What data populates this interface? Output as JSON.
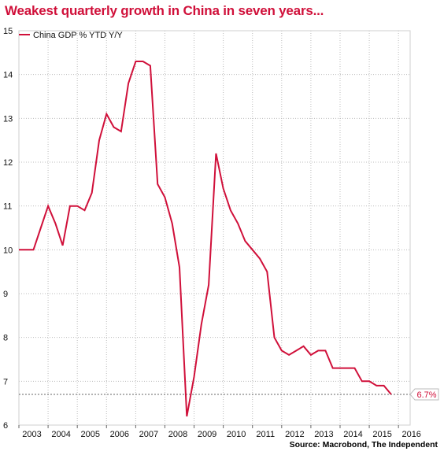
{
  "title": "Weakest quarterly growth in China in seven years...",
  "source": "Source: Macrobond, The Independent",
  "colors": {
    "series": "#d0103a",
    "title": "#d0103a",
    "grid": "#bbbbbb"
  },
  "chart_data": {
    "type": "line",
    "title": "Weakest quarterly growth in China in seven years...",
    "xlabel": "",
    "ylabel": "",
    "xlim": [
      2003,
      2016.4
    ],
    "ylim": [
      6,
      15
    ],
    "x_ticks": [
      "2003",
      "2004",
      "2005",
      "2006",
      "2007",
      "2008",
      "2009",
      "2010",
      "2011",
      "2012",
      "2013",
      "2014",
      "2015",
      "2016"
    ],
    "y_ticks": [
      6,
      7,
      8,
      9,
      10,
      11,
      12,
      13,
      14,
      15
    ],
    "grid": true,
    "legend_position": "top-left",
    "reference_line": {
      "y": 6.7,
      "label": "6.7%"
    },
    "series": [
      {
        "name": "China GDP % YTD Y/Y",
        "points": [
          [
            2003.0,
            10.0
          ],
          [
            2003.25,
            10.0
          ],
          [
            2003.5,
            10.0
          ],
          [
            2003.75,
            10.5
          ],
          [
            2004.0,
            11.0
          ],
          [
            2004.25,
            10.6
          ],
          [
            2004.5,
            10.1
          ],
          [
            2004.75,
            11.0
          ],
          [
            2005.0,
            11.0
          ],
          [
            2005.25,
            10.9
          ],
          [
            2005.5,
            11.3
          ],
          [
            2005.75,
            12.5
          ],
          [
            2006.0,
            13.1
          ],
          [
            2006.25,
            12.8
          ],
          [
            2006.5,
            12.7
          ],
          [
            2006.75,
            13.8
          ],
          [
            2007.0,
            14.3
          ],
          [
            2007.25,
            14.3
          ],
          [
            2007.5,
            14.2
          ],
          [
            2007.75,
            11.5
          ],
          [
            2008.0,
            11.2
          ],
          [
            2008.25,
            10.6
          ],
          [
            2008.5,
            9.6
          ],
          [
            2008.75,
            6.2
          ],
          [
            2009.0,
            7.1
          ],
          [
            2009.25,
            8.3
          ],
          [
            2009.5,
            9.2
          ],
          [
            2009.75,
            12.2
          ],
          [
            2010.0,
            11.4
          ],
          [
            2010.25,
            10.9
          ],
          [
            2010.5,
            10.6
          ],
          [
            2010.75,
            10.2
          ],
          [
            2011.0,
            10.0
          ],
          [
            2011.25,
            9.8
          ],
          [
            2011.5,
            9.5
          ],
          [
            2011.75,
            8.0
          ],
          [
            2012.0,
            7.7
          ],
          [
            2012.25,
            7.6
          ],
          [
            2012.5,
            7.7
          ],
          [
            2012.75,
            7.8
          ],
          [
            2013.0,
            7.6
          ],
          [
            2013.25,
            7.7
          ],
          [
            2013.5,
            7.7
          ],
          [
            2013.75,
            7.3
          ],
          [
            2014.0,
            7.3
          ],
          [
            2014.25,
            7.3
          ],
          [
            2014.5,
            7.3
          ],
          [
            2014.75,
            7.0
          ],
          [
            2015.0,
            7.0
          ],
          [
            2015.25,
            6.9
          ],
          [
            2015.5,
            6.9
          ],
          [
            2015.75,
            6.7
          ]
        ]
      }
    ]
  }
}
